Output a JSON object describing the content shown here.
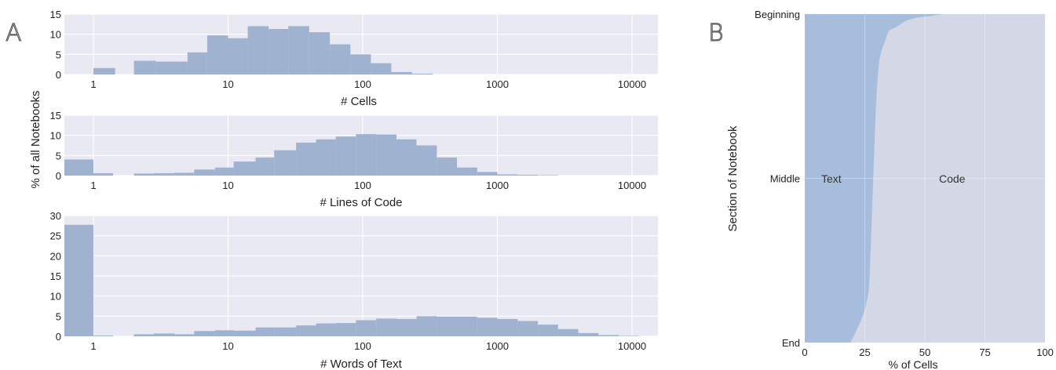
{
  "panel_a": {
    "letter": "A",
    "ylabel": "% of all Notebooks"
  },
  "panel_b": {
    "letter": "B"
  },
  "chart_data": [
    {
      "type": "bar",
      "panel": "A",
      "xlabel": "# Cells",
      "x_scale": "log",
      "x_ticks": [
        "1",
        "10",
        "100",
        "1000",
        "10000"
      ],
      "ylim": [
        0,
        15
      ],
      "y_ticks": [
        "0",
        "5",
        "10",
        "15"
      ],
      "grid": true,
      "bins": [
        {
          "x0": 1,
          "x1": 1.45,
          "value": 1.6
        },
        {
          "x0": 2,
          "x1": 2.9,
          "value": 3.4
        },
        {
          "x0": 2.9,
          "x1": 5,
          "value": 3.2
        },
        {
          "x0": 5,
          "x1": 7,
          "value": 5.5
        },
        {
          "x0": 7,
          "x1": 10,
          "value": 9.7
        },
        {
          "x0": 10,
          "x1": 14,
          "value": 9.0
        },
        {
          "x0": 14,
          "x1": 20,
          "value": 12.0
        },
        {
          "x0": 20,
          "x1": 28,
          "value": 11.3
        },
        {
          "x0": 28,
          "x1": 40,
          "value": 12.0
        },
        {
          "x0": 40,
          "x1": 57,
          "value": 10.5
        },
        {
          "x0": 57,
          "x1": 81,
          "value": 7.5
        },
        {
          "x0": 81,
          "x1": 115,
          "value": 5.0
        },
        {
          "x0": 115,
          "x1": 163,
          "value": 2.8
        },
        {
          "x0": 163,
          "x1": 232,
          "value": 0.6
        },
        {
          "x0": 232,
          "x1": 330,
          "value": 0.2
        }
      ]
    },
    {
      "type": "bar",
      "panel": "A",
      "xlabel": "# Lines of Code",
      "x_scale": "log",
      "x_ticks": [
        "1",
        "10",
        "100",
        "1000",
        "10000"
      ],
      "ylim": [
        0,
        15
      ],
      "y_ticks": [
        "0",
        "5",
        "10",
        "15"
      ],
      "grid": true,
      "bins": [
        {
          "x0": 0.5,
          "x1": 1,
          "value": 4.0
        },
        {
          "x0": 1,
          "x1": 1.4,
          "value": 0.6
        },
        {
          "x0": 2,
          "x1": 2.8,
          "value": 0.5
        },
        {
          "x0": 2.8,
          "x1": 4,
          "value": 0.6
        },
        {
          "x0": 4,
          "x1": 5.6,
          "value": 0.7
        },
        {
          "x0": 5.6,
          "x1": 8,
          "value": 1.5
        },
        {
          "x0": 8,
          "x1": 11,
          "value": 2.0
        },
        {
          "x0": 11,
          "x1": 16,
          "value": 3.5
        },
        {
          "x0": 16,
          "x1": 22,
          "value": 4.5
        },
        {
          "x0": 22,
          "x1": 32,
          "value": 6.3
        },
        {
          "x0": 32,
          "x1": 45,
          "value": 8.2
        },
        {
          "x0": 45,
          "x1": 63,
          "value": 9.0
        },
        {
          "x0": 63,
          "x1": 89,
          "value": 9.7
        },
        {
          "x0": 89,
          "x1": 126,
          "value": 10.3
        },
        {
          "x0": 126,
          "x1": 178,
          "value": 10.2
        },
        {
          "x0": 178,
          "x1": 251,
          "value": 9.0
        },
        {
          "x0": 251,
          "x1": 355,
          "value": 7.5
        },
        {
          "x0": 355,
          "x1": 501,
          "value": 4.5
        },
        {
          "x0": 501,
          "x1": 708,
          "value": 2.0
        },
        {
          "x0": 708,
          "x1": 1000,
          "value": 0.9
        },
        {
          "x0": 1000,
          "x1": 1413,
          "value": 0.3
        },
        {
          "x0": 1413,
          "x1": 2000,
          "value": 0.2
        },
        {
          "x0": 2000,
          "x1": 2825,
          "value": 0.1
        }
      ]
    },
    {
      "type": "bar",
      "panel": "A",
      "xlabel": "# Words of Text",
      "x_scale": "log",
      "x_ticks": [
        "1",
        "10",
        "100",
        "1000",
        "10000"
      ],
      "ylim": [
        0,
        30
      ],
      "y_ticks": [
        "0",
        "5",
        "10",
        "15",
        "20",
        "25",
        "30"
      ],
      "grid": true,
      "bins": [
        {
          "x0": 0.5,
          "x1": 1,
          "value": 27.7
        },
        {
          "x0": 1,
          "x1": 1.4,
          "value": 0.2
        },
        {
          "x0": 2,
          "x1": 2.8,
          "value": 0.5
        },
        {
          "x0": 2.8,
          "x1": 4,
          "value": 0.7
        },
        {
          "x0": 4,
          "x1": 5.6,
          "value": 0.5
        },
        {
          "x0": 5.6,
          "x1": 8,
          "value": 1.3
        },
        {
          "x0": 8,
          "x1": 11,
          "value": 1.5
        },
        {
          "x0": 11,
          "x1": 16,
          "value": 1.4
        },
        {
          "x0": 16,
          "x1": 22,
          "value": 2.2
        },
        {
          "x0": 22,
          "x1": 32,
          "value": 2.2
        },
        {
          "x0": 32,
          "x1": 45,
          "value": 2.7
        },
        {
          "x0": 45,
          "x1": 63,
          "value": 3.2
        },
        {
          "x0": 63,
          "x1": 89,
          "value": 3.3
        },
        {
          "x0": 89,
          "x1": 126,
          "value": 4.0
        },
        {
          "x0": 126,
          "x1": 178,
          "value": 4.4
        },
        {
          "x0": 178,
          "x1": 251,
          "value": 4.3
        },
        {
          "x0": 251,
          "x1": 355,
          "value": 5.0
        },
        {
          "x0": 355,
          "x1": 501,
          "value": 4.9
        },
        {
          "x0": 501,
          "x1": 708,
          "value": 4.9
        },
        {
          "x0": 708,
          "x1": 1000,
          "value": 4.6
        },
        {
          "x0": 1000,
          "x1": 1413,
          "value": 4.3
        },
        {
          "x0": 1413,
          "x1": 2000,
          "value": 3.8
        },
        {
          "x0": 2000,
          "x1": 2825,
          "value": 2.9
        },
        {
          "x0": 2825,
          "x1": 3990,
          "value": 1.8
        },
        {
          "x0": 3990,
          "x1": 5636,
          "value": 0.8
        },
        {
          "x0": 5636,
          "x1": 7960,
          "value": 0.3
        },
        {
          "x0": 7960,
          "x1": 11245,
          "value": 0.1
        }
      ]
    },
    {
      "type": "area",
      "panel": "B",
      "xlabel": "% of Cells",
      "ylabel": "Section of Notebook",
      "xlim": [
        0,
        100
      ],
      "x_ticks": [
        "0",
        "25",
        "50",
        "75",
        "100"
      ],
      "y_ticks": [
        "Beginning",
        "Middle",
        "End"
      ],
      "grid": true,
      "series": [
        {
          "name": "Text",
          "color": "#a6bedb"
        },
        {
          "name": "Code",
          "color": "#d3d7e6"
        }
      ],
      "boundary": {
        "position": [
          0,
          0.005,
          0.01,
          0.02,
          0.03,
          0.04,
          0.05,
          0.07,
          0.09,
          0.11,
          0.14,
          0.18,
          0.23,
          0.3,
          0.4,
          0.5,
          0.6,
          0.7,
          0.8,
          0.85,
          0.9,
          0.94,
          0.97,
          1.0
        ],
        "text_pct": [
          57,
          53,
          47,
          42,
          40,
          38,
          35,
          34,
          33,
          32,
          31,
          30.5,
          30,
          29.5,
          29,
          28.5,
          28,
          27.5,
          27,
          26.5,
          25,
          23,
          21,
          19
        ]
      }
    }
  ]
}
